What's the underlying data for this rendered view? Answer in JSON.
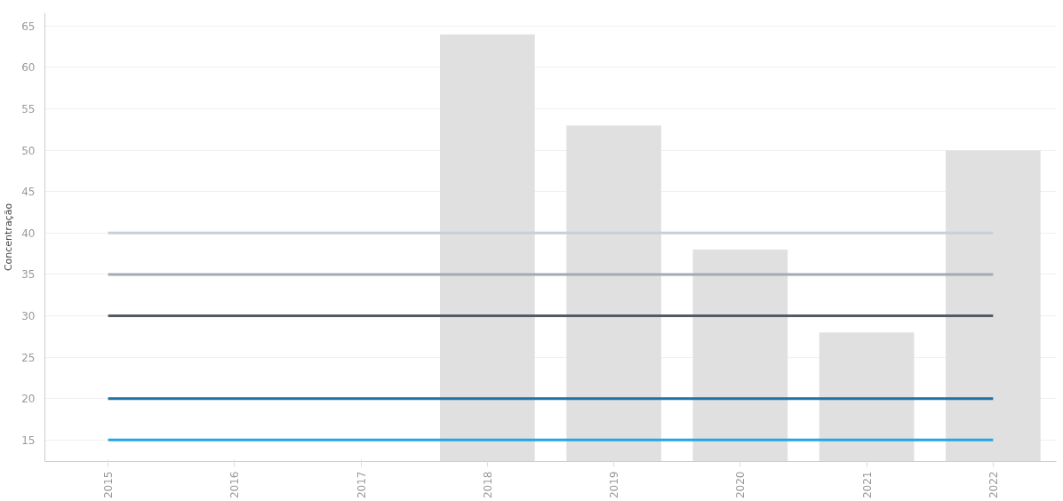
{
  "chart_data": {
    "type": "bar",
    "ylabel": "Concentração",
    "categories": [
      "2015",
      "2016",
      "2017",
      "2018",
      "2019",
      "2020",
      "2021",
      "2022"
    ],
    "series": [
      {
        "color": "#e0e0e0",
        "values": [
          null,
          null,
          null,
          64,
          53,
          38,
          28,
          50
        ]
      },
      {
        "type": "line",
        "color": "#c8d0d8",
        "values": [
          40,
          40,
          40,
          40,
          40,
          40,
          40,
          40
        ]
      },
      {
        "type": "line",
        "color": "#a2aab8",
        "values": [
          35,
          35,
          35,
          35,
          35,
          35,
          35,
          35
        ]
      },
      {
        "type": "line",
        "color": "#555a66",
        "values": [
          30,
          30,
          30,
          30,
          30,
          30,
          30,
          30
        ]
      },
      {
        "type": "line",
        "color": "#1f6fa8",
        "values": [
          20,
          20,
          20,
          20,
          20,
          20,
          20,
          20
        ]
      },
      {
        "type": "line",
        "color": "#1ea8ea",
        "values": [
          15,
          15,
          15,
          15,
          15,
          15,
          15,
          15
        ]
      }
    ],
    "ylim": [
      12.4,
      66.6
    ],
    "yticks": [
      15,
      20,
      25,
      30,
      35,
      40,
      45,
      50,
      55,
      60,
      65
    ],
    "grid": "y"
  }
}
